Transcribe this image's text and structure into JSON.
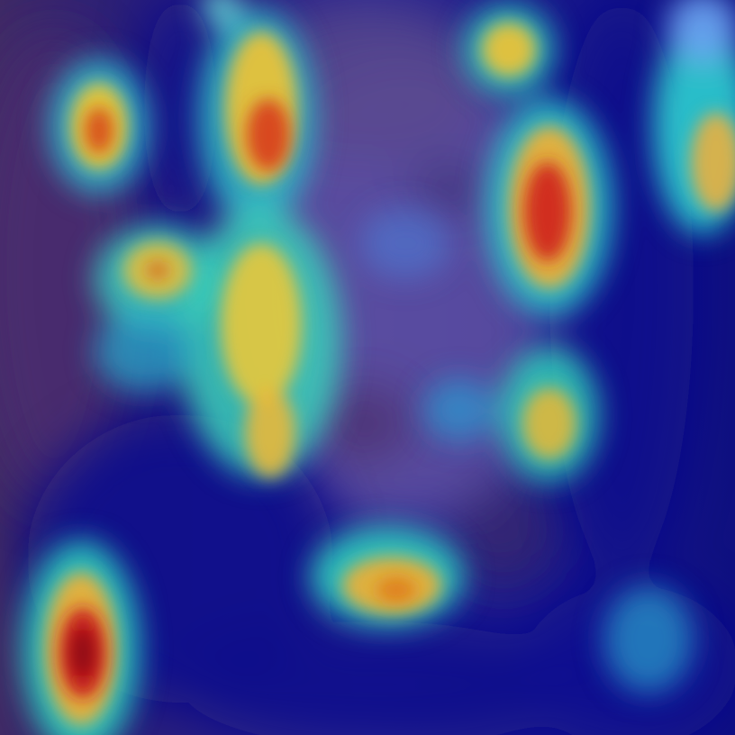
{
  "image": {
    "subject": "face-photo-with-attention-heatmap-overlay",
    "colormap": [
      "#0a0a8c",
      "#2b3bd6",
      "#2fd0c8",
      "#e8d23a",
      "#f0a020",
      "#d62a1a",
      "#8a0a0a"
    ],
    "underlay_colors": {
      "face": "#6a5aa6",
      "background_left": "#4a2f6e",
      "background_right": "#14148a"
    }
  }
}
